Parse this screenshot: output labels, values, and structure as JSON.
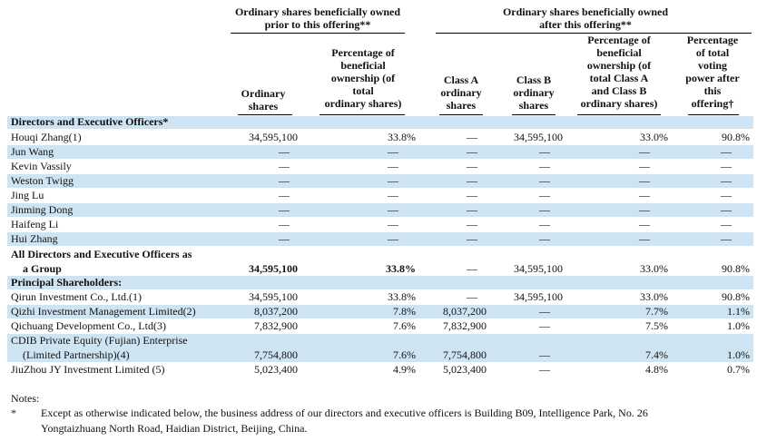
{
  "headers": {
    "group_prior_line1": "Ordinary shares beneficially owned",
    "group_prior_line2": "prior to this offering**",
    "group_after_line1": "Ordinary shares beneficially owned",
    "group_after_line2": "after this offering**",
    "col_ord_shares": [
      "Ordinary",
      "shares"
    ],
    "col_pct_prior": [
      "Percentage of",
      "beneficial",
      "ownership (of",
      "total",
      "ordinary shares)"
    ],
    "col_class_a": [
      "Class A",
      "ordinary",
      "shares"
    ],
    "col_class_b": [
      "Class B",
      "ordinary",
      "shares"
    ],
    "col_pct_after": [
      "Percentage of",
      "beneficial",
      "ownership (of",
      "total Class A",
      "and Class B",
      "ordinary shares)"
    ],
    "col_voting": [
      "Percentage",
      "of total",
      "voting",
      "power after",
      "this",
      "offering†"
    ]
  },
  "sections": {
    "directors": "Directors and Executive Officers*",
    "principal": "Principal Shareholders:"
  },
  "dash": "—",
  "rows": {
    "houqi": {
      "name": "Houqi Zhang(1)",
      "ord": "34,595,100",
      "pct_prior": "33.8%",
      "class_a": "—",
      "class_b": "34,595,100",
      "pct_after": "33.0%",
      "voting": "90.8%"
    },
    "jun": {
      "name": "Jun Wang"
    },
    "kevin": {
      "name": "Kevin Vassily"
    },
    "weston": {
      "name": "Weston Twigg"
    },
    "jing": {
      "name": "Jing Lu"
    },
    "jinming": {
      "name": "Jinming Dong"
    },
    "haifeng": {
      "name": "Haifeng Li"
    },
    "hui": {
      "name": "Hui Zhang"
    },
    "all": {
      "name_line1": "All Directors and Executive Officers as",
      "name_line2": "a Group",
      "ord": "34,595,100",
      "pct_prior": "33.8%",
      "class_a": "—",
      "class_b": "34,595,100",
      "pct_after": "33.0%",
      "voting": "90.8%"
    },
    "qirun": {
      "name": "Qirun Investment Co., Ltd.(1)",
      "ord": "34,595,100",
      "pct_prior": "33.8%",
      "class_a": "—",
      "class_b": "34,595,100",
      "pct_after": "33.0%",
      "voting": "90.8%"
    },
    "qizhi": {
      "name": "Qizhi Investment Management Limited(2)",
      "ord": "8,037,200",
      "pct_prior": "7.8%",
      "class_a": "8,037,200",
      "class_b": "—",
      "pct_after": "7.7%",
      "voting": "1.1%"
    },
    "qichuang": {
      "name": "Qichuang Development Co., Ltd(3)",
      "ord": "7,832,900",
      "pct_prior": "7.6%",
      "class_a": "7,832,900",
      "class_b": "—",
      "pct_after": "7.5%",
      "voting": "1.0%"
    },
    "cdib": {
      "name_line1": "CDIB Private Equity (Fujian) Enterprise",
      "name_line2": "(Limited Partnership)(4)",
      "ord": "7,754,800",
      "pct_prior": "7.6%",
      "class_a": "7,754,800",
      "class_b": "—",
      "pct_after": "7.4%",
      "voting": "1.0%"
    },
    "jiuzhou": {
      "name": "JiuZhou JY Investment Limited (5)",
      "ord": "5,023,400",
      "pct_prior": "4.9%",
      "class_a": "5,023,400",
      "class_b": "—",
      "pct_after": "4.8%",
      "voting": "0.7%"
    }
  },
  "notes": {
    "title": "Notes:",
    "star": "*",
    "star_line1": "Except as otherwise indicated below, the business address of our directors and executive officers is Building B09, Intelligence Park, No. 26",
    "star_line2": "Yongtaizhuang North Road, Haidian District, Beijing, China."
  }
}
